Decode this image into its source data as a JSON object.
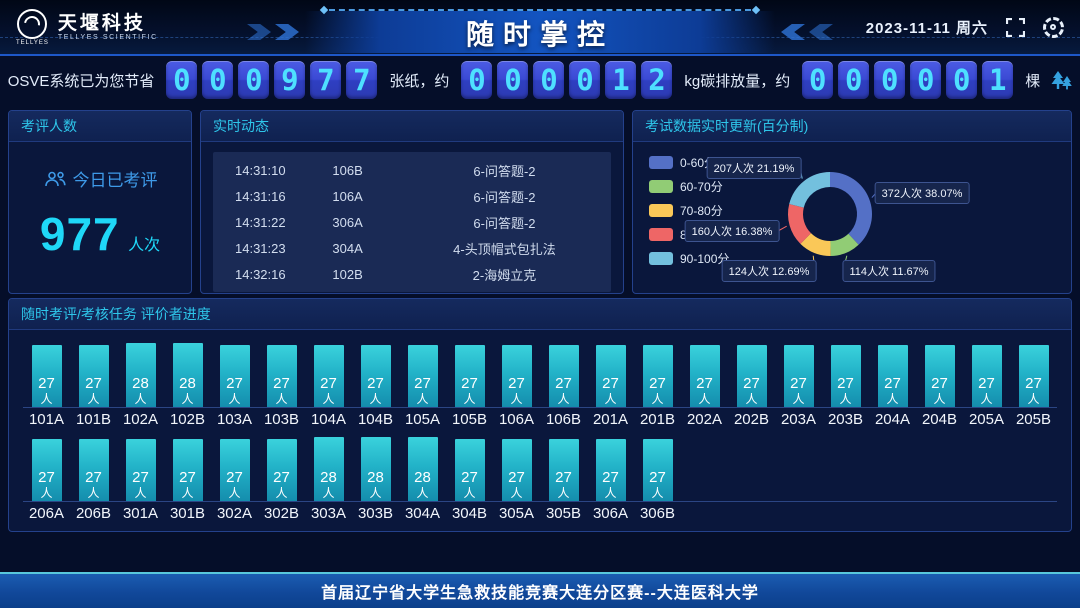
{
  "header": {
    "brand_cn": "天堰科技",
    "brand_en": "TELLYES SCIENTIFIC",
    "logo_badge": "TELLYES",
    "title": "随时掌控",
    "date": "2023-11-11 周六"
  },
  "savings": {
    "prefix": "OSVE系统已为您节省",
    "paper_digits": "000977",
    "paper_suffix": "张纸，约",
    "carbon_digits": "000012",
    "carbon_suffix": "kg碳排放量，约",
    "tree_digits": "000001",
    "tree_suffix": "棵"
  },
  "assessed": {
    "panel_title": "考评人数",
    "label": "今日已考评",
    "count": "977",
    "unit": "人次"
  },
  "live_feed": {
    "panel_title": "实时动态",
    "rows": [
      {
        "time": "14:31:10",
        "room": "106B",
        "item": "6-问答题-2"
      },
      {
        "time": "14:31:16",
        "room": "106A",
        "item": "6-问答题-2"
      },
      {
        "time": "14:31:22",
        "room": "306A",
        "item": "6-问答题-2"
      },
      {
        "time": "14:31:23",
        "room": "304A",
        "item": "4-头顶帽式包扎法"
      },
      {
        "time": "14:32:16",
        "room": "102B",
        "item": "2-海姆立克"
      }
    ]
  },
  "score_update": {
    "panel_title": "考试数据实时更新(百分制)"
  },
  "progress": {
    "panel_title": "随时考评/考核任务 评价者进度",
    "unit": "人"
  },
  "footer": {
    "text": "首届辽宁省大学生急救技能竞赛大连分区赛--大连医科大学"
  },
  "colors": {
    "accent_cyan": "#2ec6ea",
    "count_cyan": "#1fd8f8",
    "digit_text": "#4ee0ff",
    "digit_tile": "#3a49d4",
    "bar_top": "#3ad2dc",
    "bar_bottom": "#148cac",
    "footer_border": "#58c8dc",
    "header_line": "#1e57c8"
  },
  "chart_data": [
    {
      "type": "pie",
      "title": "考试数据实时更新(百分制)",
      "donut": true,
      "legend_position": "left",
      "slices": [
        {
          "range": "0-60分",
          "count": 372,
          "pct": 38.07,
          "color": "#5470c6",
          "label": "372人次 38.07%"
        },
        {
          "range": "60-70分",
          "count": 114,
          "pct": 11.67,
          "color": "#91cc75",
          "label": "114人次 11.67%"
        },
        {
          "range": "70-80分",
          "count": 124,
          "pct": 12.69,
          "color": "#fac858",
          "label": "124人次 12.69%"
        },
        {
          "range": "80-90分",
          "count": 160,
          "pct": 16.38,
          "color": "#ee6666",
          "label": "160人次 16.38%"
        },
        {
          "range": "90-100分",
          "count": 207,
          "pct": 21.19,
          "color": "#73c0de",
          "label": "207人次 21.19%"
        }
      ]
    },
    {
      "type": "bar",
      "title": "随时考评/考核任务 评价者进度",
      "value_unit": "人",
      "ylim": [
        0,
        30
      ],
      "rows": [
        {
          "categories": [
            "101A",
            "101B",
            "102A",
            "102B",
            "103A",
            "103B",
            "104A",
            "104B",
            "105A",
            "105B",
            "106A",
            "106B",
            "201A",
            "201B",
            "202A",
            "202B",
            "203A",
            "203B",
            "204A",
            "204B",
            "205A",
            "205B"
          ],
          "values": [
            27,
            27,
            28,
            28,
            27,
            27,
            27,
            27,
            27,
            27,
            27,
            27,
            27,
            27,
            27,
            27,
            27,
            27,
            27,
            27,
            27,
            27
          ]
        },
        {
          "categories": [
            "206A",
            "206B",
            "301A",
            "301B",
            "302A",
            "302B",
            "303A",
            "303B",
            "304A",
            "304B",
            "305A",
            "305B",
            "306A",
            "306B"
          ],
          "values": [
            27,
            27,
            27,
            27,
            27,
            27,
            28,
            28,
            28,
            27,
            27,
            27,
            27,
            27
          ]
        }
      ]
    }
  ]
}
